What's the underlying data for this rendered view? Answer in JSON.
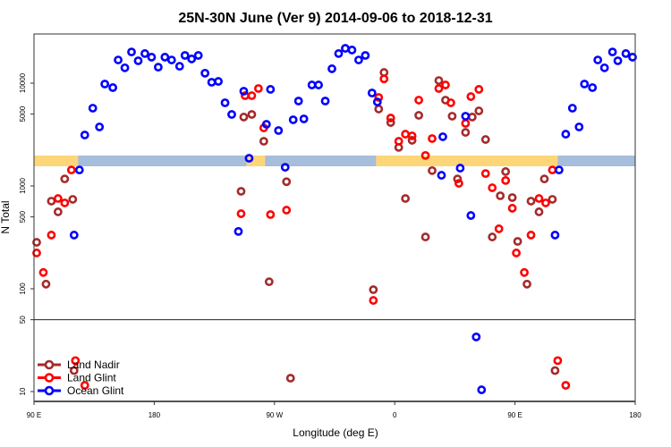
{
  "chart_data": {
    "type": "scatter",
    "title": "25N-30N June (Ver 9)   2014-09-06 to 2018-12-31",
    "xlabel": "Longitude (deg E)",
    "ylabel": "N Total",
    "x_units_note": "unwrapped degrees east starting at 90E",
    "xlim": [
      90,
      540
    ],
    "ylim": [
      8,
      30000
    ],
    "yscale": "log",
    "x_ticks": [
      {
        "value": 90,
        "label": "90 E"
      },
      {
        "value": 180,
        "label": "180"
      },
      {
        "value": 270,
        "label": "90 W"
      },
      {
        "value": 360,
        "label": "0"
      },
      {
        "value": 450,
        "label": "90 E"
      },
      {
        "value": 540,
        "label": "180"
      }
    ],
    "y_ticks": [
      {
        "value": 10,
        "label": "10"
      },
      {
        "value": 50,
        "label": "50"
      },
      {
        "value": 100,
        "label": "100"
      },
      {
        "value": 500,
        "label": "500"
      },
      {
        "value": 1000,
        "label": "1000"
      },
      {
        "value": 5000,
        "label": "5000"
      },
      {
        "value": 10000,
        "label": "10000"
      }
    ],
    "separator_line_value": 50,
    "land_mask_strip": {
      "land_color": "#FDD67A",
      "ocean_color": "#A6BDDB",
      "land_ranges": [
        [
          90,
          123
        ],
        [
          249,
          263
        ],
        [
          346,
          482
        ]
      ]
    },
    "legend": {
      "placement": "bottom-left"
    },
    "series": [
      {
        "name": "Land Nadir",
        "color": "#A52A2A",
        "points": [
          [
            92,
            283
          ],
          [
            99,
            111
          ],
          [
            103,
            712
          ],
          [
            108,
            560
          ],
          [
            113,
            1170
          ],
          [
            119,
            741
          ],
          [
            120,
            16
          ],
          [
            247,
            4680
          ],
          [
            253,
            4960
          ],
          [
            262,
            2720
          ],
          [
            245,
            887
          ],
          [
            279,
            1100
          ],
          [
            266,
            117
          ],
          [
            282,
            13.5
          ],
          [
            344,
            98
          ],
          [
            352,
            12700
          ],
          [
            348,
            5600
          ],
          [
            357,
            4140
          ],
          [
            373,
            2780
          ],
          [
            363,
            2370
          ],
          [
            378,
            4860
          ],
          [
            393,
            10600
          ],
          [
            398,
            6840
          ],
          [
            403,
            4770
          ],
          [
            413,
            3320
          ],
          [
            418,
            4680
          ],
          [
            423,
            5370
          ],
          [
            428,
            2830
          ],
          [
            388,
            1410
          ],
          [
            407,
            1170
          ],
          [
            368,
            755
          ],
          [
            383,
            319
          ],
          [
            439,
            802
          ],
          [
            443,
            1380
          ],
          [
            448,
            771
          ],
          [
            433,
            319
          ],
          [
            452,
            289
          ],
          [
            459,
            111
          ],
          [
            462,
            712
          ],
          [
            468,
            560
          ],
          [
            472,
            1170
          ],
          [
            478,
            741
          ],
          [
            480,
            16
          ]
        ]
      },
      {
        "name": "Land Glint",
        "color": "#FF0000",
        "points": [
          [
            92,
            223
          ],
          [
            97,
            144
          ],
          [
            103,
            333
          ],
          [
            108,
            755
          ],
          [
            113,
            684
          ],
          [
            118,
            1430
          ],
          [
            121,
            20
          ],
          [
            128,
            11.5
          ],
          [
            248,
            7550
          ],
          [
            253,
            7550
          ],
          [
            258,
            8870
          ],
          [
            262,
            3670
          ],
          [
            245,
            537
          ],
          [
            267,
            527
          ],
          [
            279,
            582
          ],
          [
            344,
            77
          ],
          [
            352,
            11000
          ],
          [
            348,
            7260
          ],
          [
            357,
            4580
          ],
          [
            368,
            3190
          ],
          [
            373,
            3070
          ],
          [
            363,
            2720
          ],
          [
            378,
            6840
          ],
          [
            388,
            2890
          ],
          [
            383,
            1980
          ],
          [
            393,
            8870
          ],
          [
            398,
            9600
          ],
          [
            402,
            6440
          ],
          [
            413,
            4060
          ],
          [
            417,
            7400
          ],
          [
            423,
            8700
          ],
          [
            408,
            1060
          ],
          [
            428,
            1320
          ],
          [
            433,
            960
          ],
          [
            443,
            1130
          ],
          [
            448,
            607
          ],
          [
            438,
            383
          ],
          [
            451,
            223
          ],
          [
            457,
            144
          ],
          [
            462,
            333
          ],
          [
            468,
            755
          ],
          [
            473,
            684
          ],
          [
            478,
            1430
          ],
          [
            482,
            20
          ],
          [
            488,
            11.5
          ]
        ]
      },
      {
        "name": "Ocean Glint",
        "color": "#0000FF",
        "points": [
          [
            128,
            3130
          ],
          [
            134,
            5710
          ],
          [
            139,
            3750
          ],
          [
            143,
            9800
          ],
          [
            149,
            9050
          ],
          [
            153,
            16800
          ],
          [
            158,
            14100
          ],
          [
            163,
            20100
          ],
          [
            168,
            16500
          ],
          [
            173,
            19400
          ],
          [
            178,
            17900
          ],
          [
            183,
            14300
          ],
          [
            188,
            17900
          ],
          [
            193,
            16800
          ],
          [
            199,
            14600
          ],
          [
            203,
            18600
          ],
          [
            208,
            17200
          ],
          [
            213,
            18600
          ],
          [
            218,
            12500
          ],
          [
            223,
            10200
          ],
          [
            228,
            10400
          ],
          [
            233,
            6440
          ],
          [
            238,
            4960
          ],
          [
            247,
            8350
          ],
          [
            251,
            1860
          ],
          [
            267,
            8700
          ],
          [
            264,
            3980
          ],
          [
            273,
            3460
          ],
          [
            278,
            1520
          ],
          [
            284,
            4400
          ],
          [
            288,
            6700
          ],
          [
            292,
            4490
          ],
          [
            298,
            9600
          ],
          [
            303,
            9600
          ],
          [
            308,
            6700
          ],
          [
            313,
            13800
          ],
          [
            318,
            19400
          ],
          [
            323,
            21800
          ],
          [
            328,
            21000
          ],
          [
            333,
            16800
          ],
          [
            338,
            18600
          ],
          [
            343,
            8020
          ],
          [
            347,
            6560
          ],
          [
            124,
            1430
          ],
          [
            120,
            333
          ],
          [
            243,
            361
          ],
          [
            413,
            4770
          ],
          [
            396,
            3010
          ],
          [
            409,
            1490
          ],
          [
            395,
            1270
          ],
          [
            417,
            516
          ],
          [
            480,
            333
          ],
          [
            483,
            1430
          ],
          [
            488,
            3190
          ],
          [
            493,
            5710
          ],
          [
            498,
            3750
          ],
          [
            502,
            9800
          ],
          [
            508,
            9050
          ],
          [
            512,
            16800
          ],
          [
            517,
            14100
          ],
          [
            523,
            20100
          ],
          [
            527,
            16500
          ],
          [
            533,
            19400
          ],
          [
            538,
            17900
          ],
          [
            421,
            34
          ],
          [
            425,
            10.4
          ]
        ]
      }
    ]
  }
}
